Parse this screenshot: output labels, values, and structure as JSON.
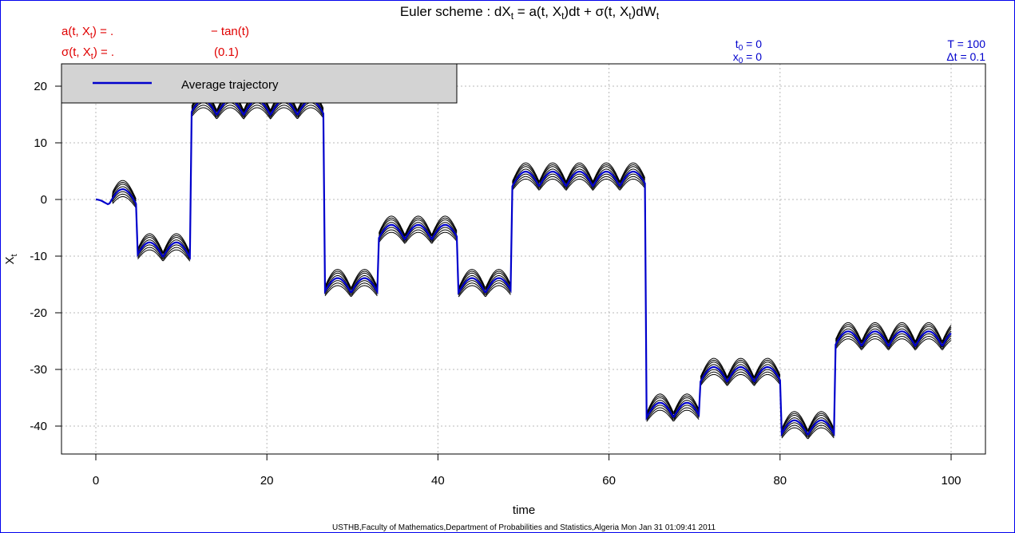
{
  "chart_data": {
    "type": "line",
    "title": {
      "text": "Euler scheme : dX",
      "sub1": "t",
      "rest": " = a(t, X",
      "sub2": "t",
      "rest2": ")dt + σ(t, X",
      "sub3": "t",
      "rest3": ")dW",
      "sub4": "t"
    },
    "xlabel": "time",
    "ylabel": {
      "main": "X",
      "sub": "t"
    },
    "xlim": [
      0,
      100
    ],
    "ylim": [
      -45,
      24
    ],
    "xticks": [
      0,
      20,
      40,
      60,
      80,
      100
    ],
    "yticks": [
      20,
      10,
      0,
      -10,
      -20,
      -30,
      -40
    ],
    "grid": true,
    "legend": {
      "placement": "top-left",
      "label": "Average trajectory",
      "color": "#0000cc"
    },
    "annotations": {
      "drift_label": {
        "main": "a(t, X",
        "sub": "t",
        "rest": ") = ."
      },
      "drift_value": "− tan(t)",
      "diffusion_label": {
        "main": "σ(t, X",
        "sub": "t",
        "rest": ") = ."
      },
      "diffusion_value": "(0.1)",
      "t0": {
        "main": "t",
        "sub": "0",
        "rest": " = 0"
      },
      "x0": {
        "main": "x",
        "sub": "0",
        "rest": " = 0"
      },
      "T": "T = 100",
      "dt": "Δt = 0.1"
    },
    "series": [
      {
        "name": "Average trajectory",
        "color": "#0000cc",
        "segments": [
          {
            "x0": 0.0,
            "x1": 1.5,
            "level": 0
          },
          {
            "x0": 1.6,
            "x1": 4.7,
            "level": 0
          },
          {
            "x0": 4.8,
            "x1": 11.0,
            "level": -9.4
          },
          {
            "x0": 11.1,
            "x1": 26.7,
            "level": 15.7
          },
          {
            "x0": 26.8,
            "x1": 33.0,
            "level": -15.7
          },
          {
            "x0": 33.1,
            "x1": 42.3,
            "level": -6.3
          },
          {
            "x0": 42.4,
            "x1": 48.6,
            "level": -15.7
          },
          {
            "x0": 48.7,
            "x1": 64.3,
            "level": 3.1
          },
          {
            "x0": 64.4,
            "x1": 70.6,
            "level": -37.7
          },
          {
            "x0": 70.7,
            "x1": 80.0,
            "level": -31.4
          },
          {
            "x0": 80.1,
            "x1": 86.3,
            "level": -40.8
          },
          {
            "x0": 86.4,
            "x1": 100.0,
            "level": -25.1
          }
        ]
      }
    ],
    "footer": "USTHB,Faculty of Mathematics,Department of Probabilities and Statistics,Algeria Mon Jan 31 01:09:41 2011"
  }
}
